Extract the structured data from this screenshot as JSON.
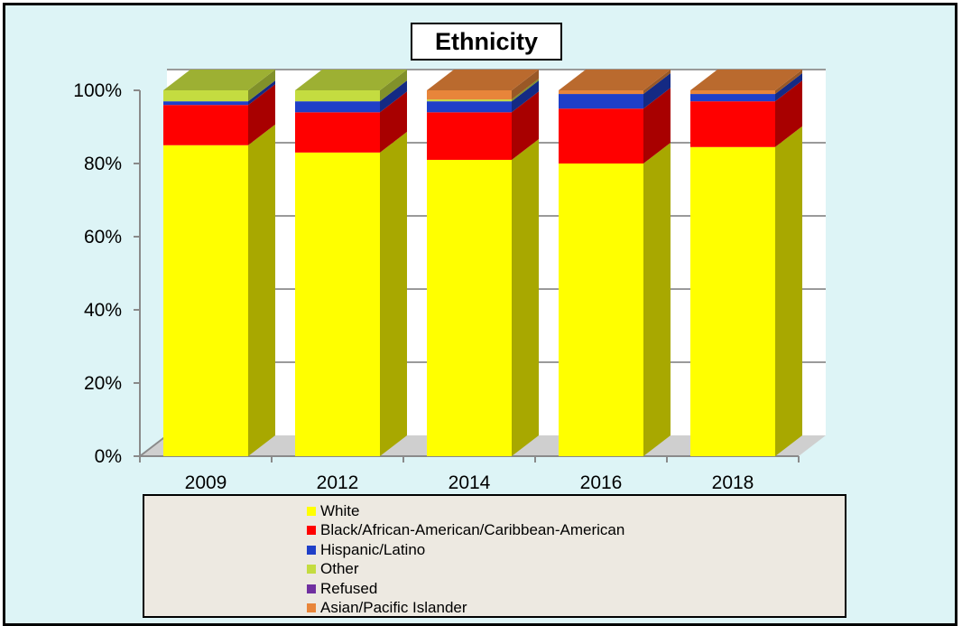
{
  "chart_data": {
    "type": "bar",
    "stacked": true,
    "percent": true,
    "three_d": true,
    "title": "Ethnicity",
    "xlabel": "",
    "ylabel": "",
    "ylim": [
      0,
      100
    ],
    "y_ticks": [
      "0%",
      "20%",
      "40%",
      "60%",
      "80%",
      "100%"
    ],
    "grid": true,
    "legend_position": "bottom",
    "categories": [
      "2009",
      "2012",
      "2014",
      "2016",
      "2018"
    ],
    "series": [
      {
        "name": "White",
        "color": "#ffff00",
        "values": [
          85,
          83,
          81,
          80,
          84.5
        ]
      },
      {
        "name": "Black/African-American/Caribbean-American",
        "color": "#ff0000",
        "values": [
          11,
          11,
          13,
          15,
          12.5
        ]
      },
      {
        "name": "Hispanic/Latino",
        "color": "#1f3fc8",
        "values": [
          1,
          3,
          3,
          4,
          2
        ]
      },
      {
        "name": "Other",
        "color": "#c4dc40",
        "values": [
          3,
          3,
          0.5,
          0,
          0
        ]
      },
      {
        "name": "Refused",
        "color": "#7030a0",
        "values": [
          0,
          0,
          0,
          0,
          0
        ]
      },
      {
        "name": "Asian/Pacific Islander",
        "color": "#e8853a",
        "values": [
          0,
          0,
          2.5,
          1,
          1
        ]
      }
    ]
  }
}
